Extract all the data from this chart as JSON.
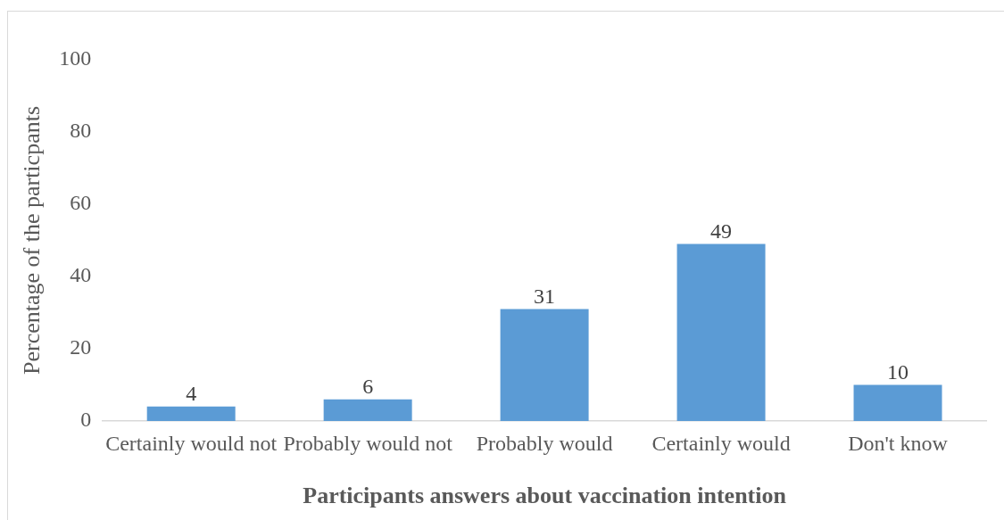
{
  "chart_data": {
    "type": "bar",
    "xlabel": "Participants answers about vaccination intention",
    "ylabel": "Percentage of the particpants",
    "categories": [
      "Certainly would not",
      "Probably would not",
      "Probably would",
      "Certainly would",
      "Don't know"
    ],
    "values": [
      4,
      6,
      31,
      49,
      10
    ],
    "color": "#5b9bd5",
    "ylim": [
      0,
      100
    ],
    "yticks": [
      0,
      20,
      40,
      60,
      80,
      100
    ],
    "data_labels": true,
    "grid": false,
    "legend": false
  }
}
